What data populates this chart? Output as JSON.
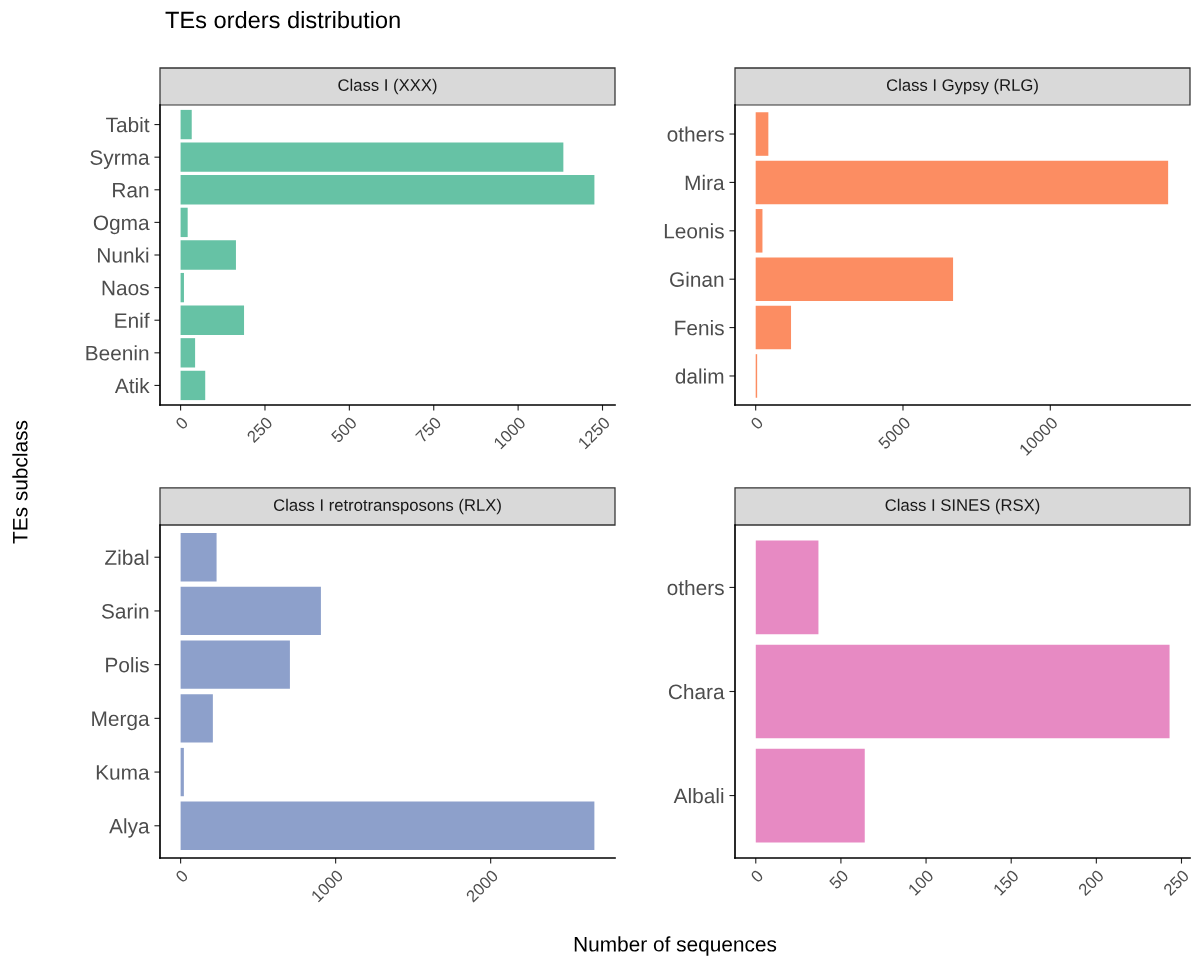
{
  "chart_data": [
    {
      "type": "bar",
      "orientation": "horizontal",
      "title": "Class I (XXX)",
      "annotations": [
        "TEs orders distribution"
      ],
      "ylabel": "TEs subclass",
      "categories": [
        "Tabit",
        "Syrma",
        "Ran",
        "Ogma",
        "Nunki",
        "Naos",
        "Enif",
        "Beenin",
        "Atik"
      ],
      "values": [
        33,
        1134,
        1226,
        21,
        164,
        10,
        188,
        43,
        73
      ],
      "color": "#66c2a5",
      "xlim": [
        -61,
        1287
      ],
      "xticks": [
        0,
        250,
        500,
        750,
        1000,
        1250
      ],
      "grid": false
    },
    {
      "type": "bar",
      "orientation": "horizontal",
      "title": "Class I Gypsy (RLG)",
      "categories": [
        "others",
        "Mira",
        "Leonis",
        "Ginan",
        "Fenis",
        "dalim"
      ],
      "values": [
        430,
        14000,
        230,
        6700,
        1200,
        50
      ],
      "color": "#fc8d62",
      "xlim": [
        -702,
        14742
      ],
      "xticks": [
        0,
        5000,
        10000
      ],
      "grid": false
    },
    {
      "type": "bar",
      "orientation": "horizontal",
      "title": "Class I retrotransposons (RLX)",
      "xlabel": "Number of sequences",
      "categories": [
        "Zibal",
        "Sarin",
        "Polis",
        "Merga",
        "Kuma",
        "Alya"
      ],
      "values": [
        232,
        905,
        705,
        208,
        21,
        2669
      ],
      "color": "#8da0cb",
      "xlim": [
        -133,
        2802
      ],
      "xticks": [
        0,
        1000,
        2000
      ],
      "grid": false
    },
    {
      "type": "bar",
      "orientation": "horizontal",
      "title": "Class I SINES (RSX)",
      "categories": [
        "others",
        "Chara",
        "Albali"
      ],
      "values": [
        36.8,
        243,
        64
      ],
      "color": "#e78ac3",
      "xlim": [
        -12.2,
        255
      ],
      "xticks": [
        0,
        50,
        100,
        150,
        200,
        250
      ],
      "grid": false
    }
  ]
}
